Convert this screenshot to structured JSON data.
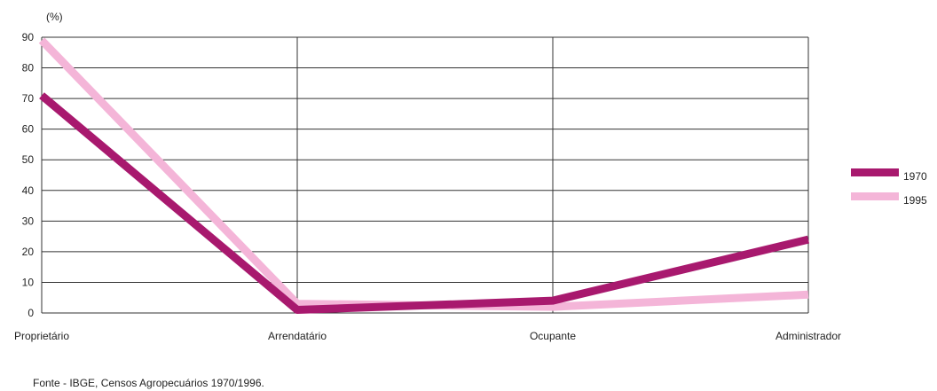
{
  "chart_data": {
    "type": "line",
    "ylabel": "(%)",
    "categories": [
      "Proprietário",
      "Arrendatário",
      "Ocupante",
      "Administrador"
    ],
    "ylim": [
      0,
      90
    ],
    "yticks": [
      0,
      10,
      20,
      30,
      40,
      50,
      60,
      70,
      80,
      90
    ],
    "grid": true,
    "legend_position": "right",
    "series": [
      {
        "name": "1970",
        "color": "#a8196e",
        "values": [
          71,
          1,
          4,
          24
        ]
      },
      {
        "name": "1995",
        "color": "#f4b5d8",
        "values": [
          89,
          3,
          2,
          6
        ]
      }
    ]
  },
  "source": "Fonte  - IBGE, Censos Agropecuários 1970/1996."
}
